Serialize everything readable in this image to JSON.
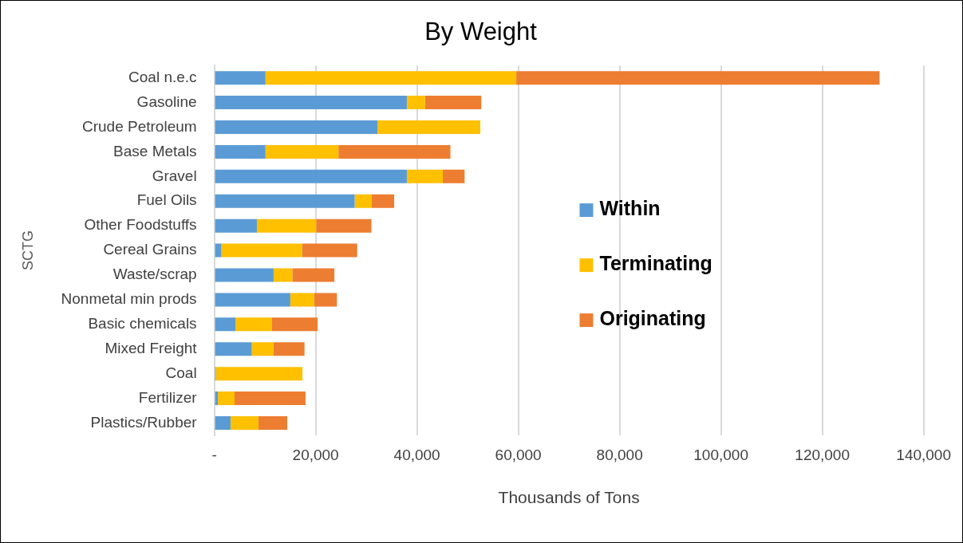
{
  "chart_data": {
    "type": "bar",
    "orientation": "horizontal",
    "stacked": true,
    "title": "By Weight",
    "xlabel": "Thousands of Tons",
    "ylabel": "SCTG",
    "categories": [
      "Coal n.e.c",
      "Gasoline",
      "Crude Petroleum",
      "Base Metals",
      "Gravel",
      "Fuel Oils",
      "Other Foodstuffs",
      "Cereal Grains",
      "Waste/scrap",
      "Nonmetal min prods",
      "Basic chemicals",
      "Mixed Freight",
      "Coal",
      "Fertilizer",
      "Plastics/Rubber"
    ],
    "series": [
      {
        "name": "Within",
        "color": "#5b9bd5",
        "values": [
          10100,
          38000,
          32200,
          10100,
          38000,
          27700,
          8400,
          1400,
          11700,
          15000,
          4200,
          7400,
          300,
          700,
          3200
        ]
      },
      {
        "name": "Terminating",
        "color": "#ffc000",
        "values": [
          49500,
          3600,
          20300,
          14400,
          7100,
          3300,
          11700,
          15900,
          3700,
          4700,
          7100,
          4300,
          17100,
          3300,
          5500
        ]
      },
      {
        "name": "Originating",
        "color": "#ed7d31",
        "values": [
          71700,
          11100,
          0,
          22100,
          4300,
          4500,
          10900,
          10900,
          8300,
          4500,
          9100,
          6100,
          0,
          14000,
          5700
        ]
      }
    ],
    "xlim": [
      0,
      140000
    ],
    "xticks": [
      {
        "value": 0,
        "label": "-"
      },
      {
        "value": 20000,
        "label": "20,000"
      },
      {
        "value": 40000,
        "label": "40,000"
      },
      {
        "value": 60000,
        "label": "60,000"
      },
      {
        "value": 80000,
        "label": "80,000"
      },
      {
        "value": 100000,
        "label": "100,000"
      },
      {
        "value": 120000,
        "label": "120,000"
      },
      {
        "value": 140000,
        "label": "140,000"
      }
    ],
    "grid": "x",
    "legend": "right"
  }
}
